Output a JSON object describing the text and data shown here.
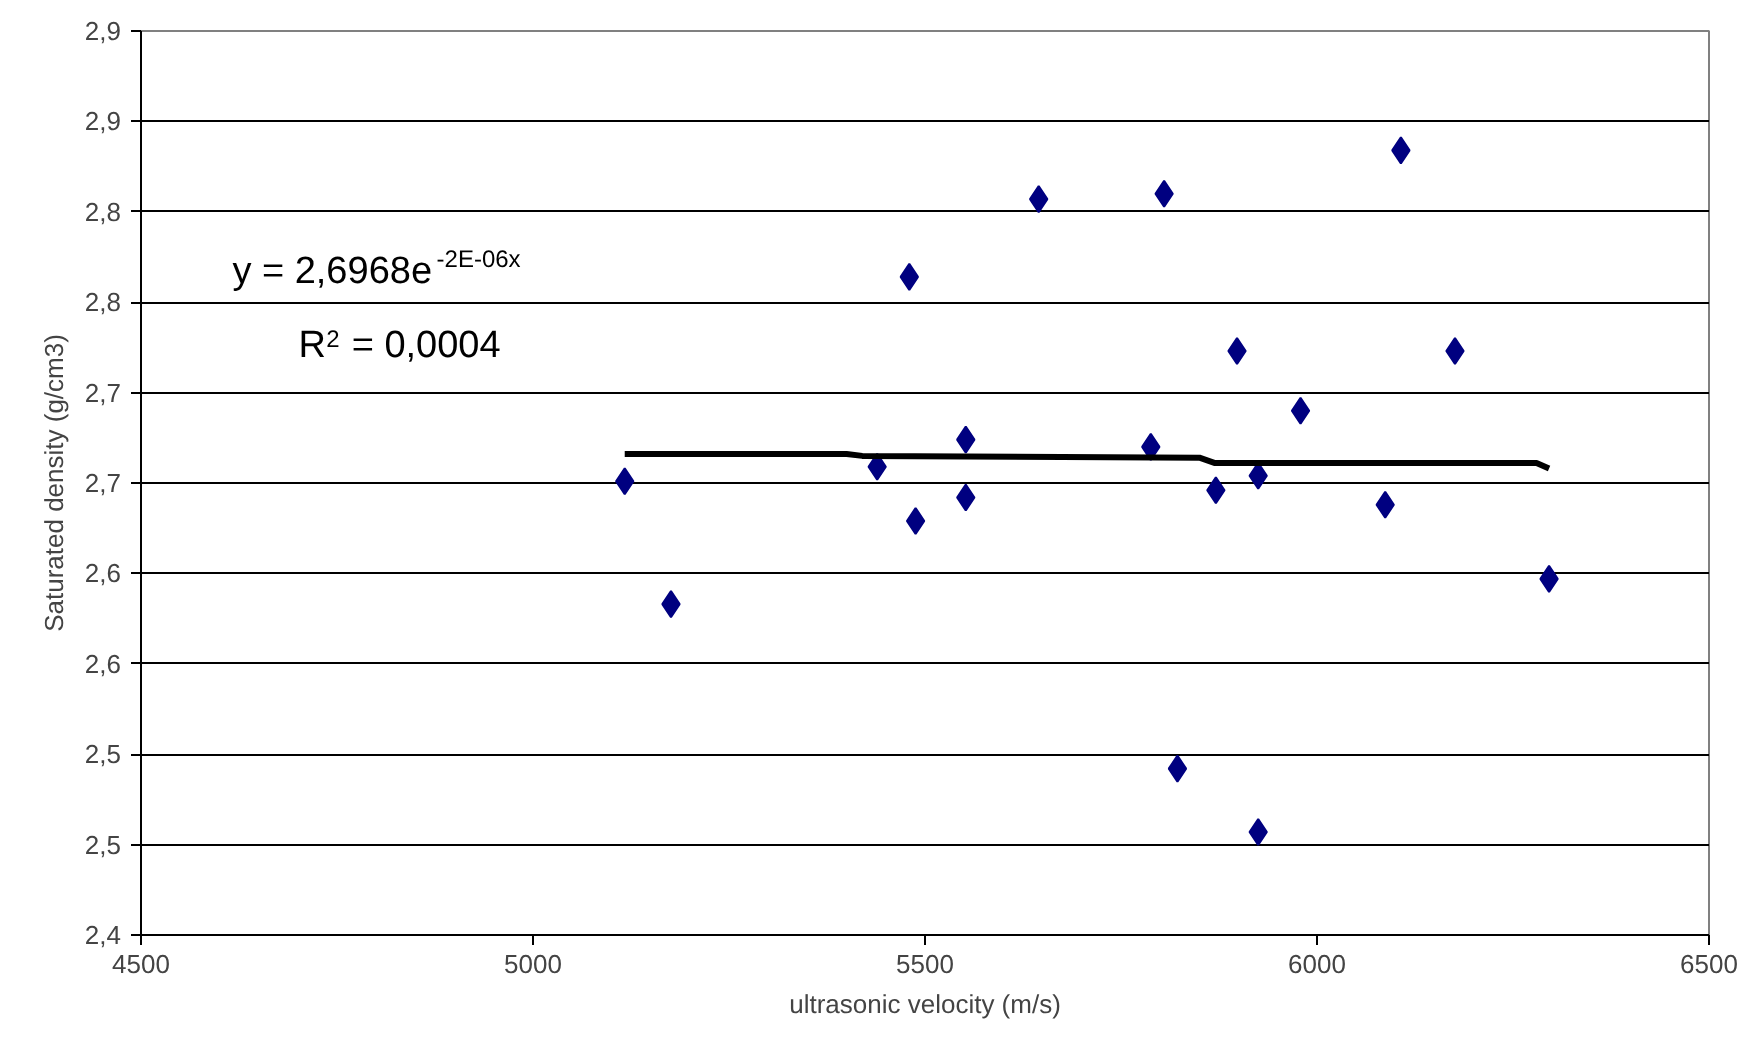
{
  "chart_data": {
    "type": "scatter",
    "xlabel": "ultrasonic velocity (m/s)",
    "ylabel": "Saturated density (g/cm3)",
    "xlim": [
      4500,
      6500
    ],
    "xticks": [
      4500,
      5000,
      5500,
      6000,
      6500
    ],
    "ylim": [
      2.4,
      2.9
    ],
    "yticks": [
      {
        "value": 2.4,
        "label": "2,4"
      },
      {
        "value": 2.45,
        "label": "2,5"
      },
      {
        "value": 2.5,
        "label": "2,5"
      },
      {
        "value": 2.55,
        "label": "2,6"
      },
      {
        "value": 2.6,
        "label": "2,6"
      },
      {
        "value": 2.65,
        "label": "2,7"
      },
      {
        "value": 2.7,
        "label": "2,7"
      },
      {
        "value": 2.75,
        "label": "2,8"
      },
      {
        "value": 2.8,
        "label": "2,8"
      },
      {
        "value": 2.85,
        "label": "2,9"
      },
      {
        "value": 2.9,
        "label": "2,9"
      }
    ],
    "grid": "y",
    "marker": "diamond",
    "series": [
      {
        "color": "#000080",
        "x": [
          5117,
          5176,
          5439,
          5480,
          5488,
          5552,
          5552,
          5645,
          5788,
          5805,
          5822,
          5871,
          5898,
          5925,
          5925,
          5979,
          6087,
          6107,
          6176,
          6296
        ],
        "values": [
          2.651,
          2.583,
          2.659,
          2.764,
          2.629,
          2.674,
          2.642,
          2.807,
          2.67,
          2.81,
          2.492,
          2.646,
          2.723,
          2.654,
          2.457,
          2.69,
          2.638,
          2.834,
          2.723,
          2.597
        ]
      },
      {
        "type": "line",
        "color": "#000000",
        "marker": "none",
        "x": [
          5117,
          5400,
          5420,
          5850,
          5870,
          6280,
          6296
        ],
        "values": [
          2.666,
          2.666,
          2.665,
          2.664,
          2.661,
          2.661,
          2.658
        ]
      }
    ],
    "annotations": [
      "y = 2,6968e$^{-2E-06x}$",
      "R$^{2}$ = 0,0004"
    ]
  }
}
